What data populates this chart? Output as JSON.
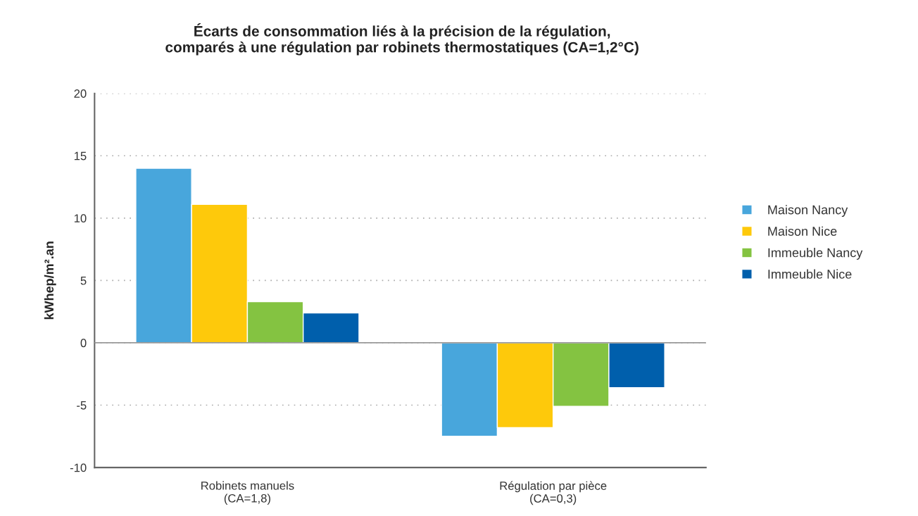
{
  "chart_data": {
    "type": "bar",
    "title": "Écarts de consommation liés à la précision de la régulation,\ncomparés à une régulation par robinets thermostatiques (CA=1,2°C)",
    "ylabel": "kWhep/m².an",
    "categories": [
      "Robinets manuels\n(CA=1,8)",
      "Régulation par pièce\n(CA=0,3)"
    ],
    "series": [
      {
        "name": "Maison Nancy",
        "color": "#48a6dc",
        "values": [
          14.0,
          -7.5
        ]
      },
      {
        "name": "Maison Nice",
        "color": "#fec90b",
        "values": [
          11.1,
          -6.8
        ]
      },
      {
        "name": "Immeuble Nancy",
        "color": "#84c341",
        "values": [
          3.3,
          -5.1
        ]
      },
      {
        "name": "Immeuble Nice",
        "color": "#005fac",
        "values": [
          2.4,
          -3.6
        ]
      }
    ],
    "ylim": [
      -10,
      20
    ],
    "yticks": [
      -10,
      -5,
      0,
      5,
      10,
      15,
      20
    ],
    "ref_lines": [
      {
        "axis": "y",
        "value": 0,
        "color": "#999999",
        "line_style": "solid"
      }
    ],
    "grid": "y",
    "legend": "right"
  }
}
